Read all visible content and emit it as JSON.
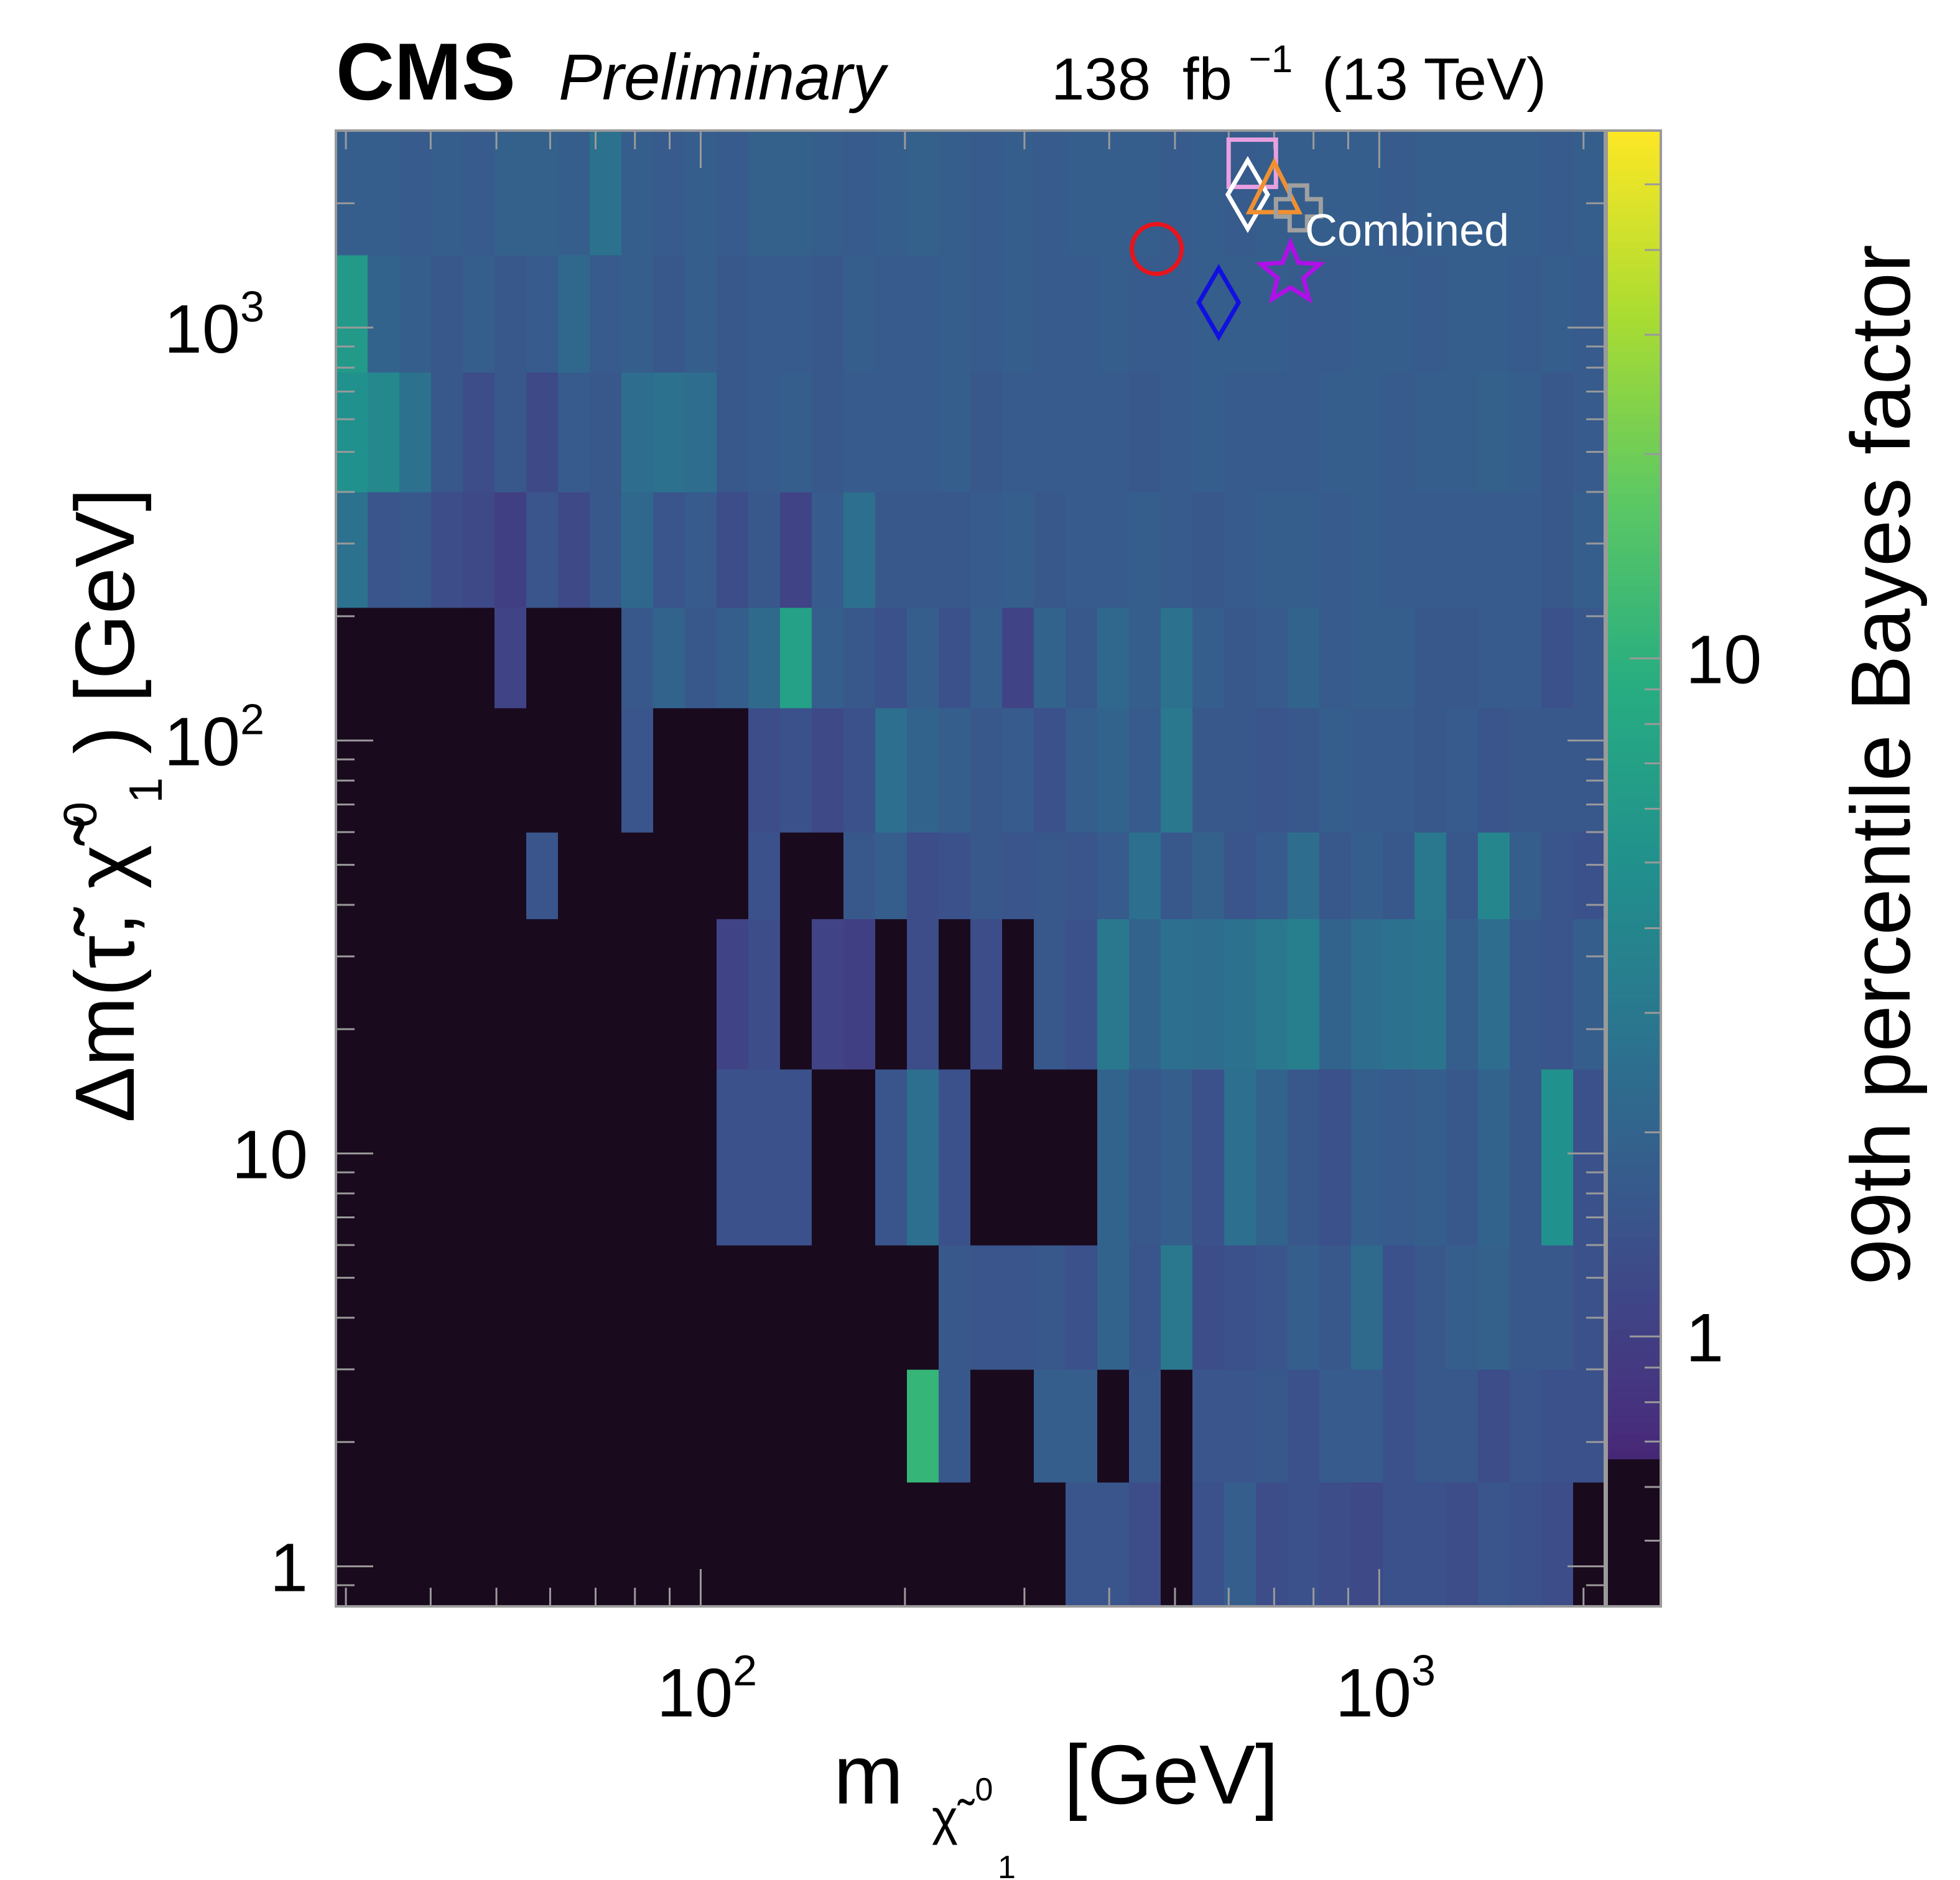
{
  "header": {
    "experiment": "CMS",
    "status": "Preliminary",
    "lumi_number": "138",
    "lumi_unit": "fb",
    "lumi_exponent": "−1",
    "energy": "(13 TeV)"
  },
  "chart_data": {
    "type": "heatmap",
    "title": "CMS Preliminary",
    "xlabel": "m_{χ̃1^0} [GeV]",
    "ylabel": "Δm(τ̃,χ̃1^0) [GeV]",
    "zlabel": "99th percentile Bayes factor",
    "xlabel_parts": {
      "main": "m",
      "sub": "χ̃",
      "sub_sup": "0",
      "sub_sub": "1",
      "unit": "[GeV]"
    },
    "ylabel_parts": {
      "prefix": "Δm(τ̃,",
      "chi": "χ̃",
      "sup": "0",
      "sub": "1",
      "suffix": ") [GeV]"
    },
    "x_scale": "log",
    "y_scale": "log",
    "z_scale": "log",
    "xlim": [
      29,
      2150
    ],
    "ylim": [
      0.8,
      3000
    ],
    "zlim": [
      0.4,
      60
    ],
    "x_ticks": [
      {
        "base": "10",
        "exp": "2",
        "value": 100
      },
      {
        "base": "10",
        "exp": "3",
        "value": 1000
      }
    ],
    "y_ticks": [
      {
        "label": "1",
        "value": 1
      },
      {
        "label": "10",
        "value": 10
      },
      {
        "base": "10",
        "exp": "2",
        "value": 100
      },
      {
        "base": "10",
        "exp": "3",
        "value": 1000
      }
    ],
    "z_ticks": [
      {
        "label": "1",
        "value": 1
      },
      {
        "label": "10",
        "value": 10
      }
    ],
    "colormap": [
      "#440154",
      "#472f7d",
      "#3b518b",
      "#2c718e",
      "#21908d",
      "#27ad81",
      "#5cc863",
      "#aadc32",
      "#fde725"
    ],
    "colormap_dark": "#1a0a1e",
    "y_bins": [
      0.8,
      1.6,
      3.0,
      6.0,
      16,
      37,
      60,
      120,
      210,
      400,
      780,
      1500,
      3000
    ],
    "x_bins_per_row": 40,
    "grid": false,
    "legend": {
      "label": "Combined",
      "placement": "top-right",
      "markers": [
        {
          "shape": "circle",
          "color": "#e8141c",
          "x": 470,
          "y": 1550
        },
        {
          "shape": "diamond",
          "color": "#1010e0",
          "x": 580,
          "y": 1150
        },
        {
          "shape": "star",
          "color": "#b010e8",
          "x": 740,
          "y": 1350
        },
        {
          "shape": "square",
          "color": "#e8a0e0",
          "x": 650,
          "y": 2500
        },
        {
          "shape": "diamond",
          "color": "#ffffff",
          "x": 640,
          "y": 2100
        },
        {
          "shape": "triangle",
          "color": "#f09030",
          "x": 700,
          "y": 2150
        },
        {
          "shape": "cross",
          "color": "#a0a0a0",
          "x": 760,
          "y": 1950
        }
      ]
    },
    "values": [
      [
        0.5,
        0.5,
        0.5,
        0.5,
        0.5,
        0.5,
        0.5,
        0.5,
        0.5,
        0.5,
        0.5,
        0.5,
        0.5,
        0.5,
        0.5,
        0.5,
        0.5,
        0.5,
        0.5,
        0.5,
        0.5,
        0.5,
        0.5,
        1.5,
        1.5,
        1.3,
        0.55,
        1.4,
        1.8,
        1.3,
        1.4,
        1.3,
        1.2,
        1.4,
        1.4,
        1.3,
        1.5,
        1.4,
        1.3,
        0.5
      ],
      [
        0.5,
        0.5,
        0.5,
        0.5,
        0.5,
        0.5,
        0.5,
        0.5,
        0.5,
        0.5,
        0.5,
        0.5,
        0.5,
        0.5,
        0.5,
        0.5,
        0.5,
        0.5,
        11,
        1.6,
        0.5,
        0.5,
        1.8,
        1.8,
        0.6,
        1.6,
        0.55,
        1.5,
        1.5,
        1.6,
        1.4,
        1.7,
        1.7,
        1.4,
        1.6,
        1.6,
        1.3,
        1.5,
        1.4,
        1.4
      ],
      [
        0.5,
        0.5,
        0.5,
        0.5,
        0.5,
        0.5,
        0.5,
        0.5,
        0.5,
        0.5,
        0.5,
        0.5,
        0.5,
        0.5,
        0.5,
        0.5,
        0.5,
        0.5,
        0.5,
        1.6,
        1.5,
        1.5,
        1.6,
        1.4,
        2.0,
        1.5,
        3.0,
        1.3,
        1.4,
        1.5,
        1.8,
        1.6,
        2.3,
        1.4,
        1.6,
        1.8,
        1.9,
        1.6,
        1.6,
        1.4
      ],
      [
        0.5,
        0.5,
        0.5,
        0.5,
        0.5,
        0.5,
        0.5,
        0.5,
        0.5,
        0.5,
        0.5,
        0.5,
        1.4,
        1.4,
        1.4,
        0.5,
        0.5,
        1.5,
        2.5,
        1.4,
        0.55,
        0.55,
        0.5,
        0.5,
        2.0,
        1.6,
        1.8,
        1.4,
        2.5,
        2.0,
        1.6,
        1.4,
        1.8,
        1.7,
        1.8,
        1.6,
        2.0,
        1.6,
        5.0,
        1.4
      ],
      [
        0.5,
        0.5,
        0.5,
        0.5,
        0.5,
        0.5,
        0.5,
        0.5,
        0.5,
        0.5,
        0.5,
        0.6,
        1.1,
        1.3,
        0.6,
        1.1,
        1.0,
        0.55,
        1.3,
        0.5,
        1.3,
        0.5,
        1.6,
        1.4,
        3.0,
        2.0,
        2.5,
        2.4,
        2.6,
        3.0,
        3.5,
        2.0,
        2.4,
        2.6,
        2.8,
        1.8,
        2.4,
        1.6,
        1.5,
        1.8
      ],
      [
        0.5,
        0.5,
        0.5,
        0.5,
        0.5,
        0.5,
        1.5,
        0.5,
        0.5,
        0.5,
        0.5,
        0.5,
        0.6,
        1.4,
        0.5,
        0.5,
        1.6,
        1.8,
        1.3,
        1.4,
        1.6,
        1.5,
        1.6,
        1.5,
        1.7,
        2.5,
        1.6,
        1.9,
        1.5,
        1.7,
        2.4,
        1.6,
        1.8,
        1.6,
        3.0,
        1.6,
        4.0,
        1.8,
        1.5,
        1.4
      ],
      [
        0.5,
        0.5,
        0.5,
        0.5,
        0.5,
        0.5,
        0.5,
        0.5,
        0.5,
        1.5,
        0.5,
        0.5,
        0.5,
        1.3,
        1.4,
        1.2,
        1.4,
        2.5,
        2.0,
        1.8,
        1.6,
        1.7,
        1.4,
        1.8,
        2.0,
        1.7,
        3.0,
        1.6,
        1.6,
        1.5,
        1.6,
        1.8,
        1.7,
        1.7,
        1.6,
        1.7,
        1.5,
        1.6,
        1.6,
        1.6
      ],
      [
        0.5,
        0.5,
        0.5,
        0.5,
        0.5,
        1.1,
        0.5,
        0.5,
        0.5,
        1.6,
        2.0,
        1.6,
        1.8,
        2.3,
        7.0,
        1.8,
        1.6,
        1.4,
        1.8,
        1.4,
        1.8,
        1.1,
        2.0,
        1.6,
        2.2,
        1.8,
        2.6,
        1.8,
        1.6,
        1.7,
        2.0,
        1.7,
        1.8,
        1.8,
        1.6,
        1.6,
        1.7,
        1.7,
        1.4,
        1.6
      ],
      [
        2.6,
        1.5,
        1.6,
        1.3,
        1.2,
        1.0,
        1.5,
        1.2,
        1.6,
        2.2,
        1.5,
        1.7,
        1.3,
        1.6,
        1.1,
        1.7,
        2.5,
        1.6,
        1.6,
        1.6,
        1.7,
        1.8,
        1.6,
        1.7,
        1.7,
        1.8,
        1.7,
        1.6,
        1.7,
        1.8,
        1.8,
        1.7,
        1.8,
        1.7,
        1.7,
        1.7,
        1.7,
        1.7,
        1.6,
        1.8
      ],
      [
        5.0,
        4.2,
        2.6,
        1.6,
        1.3,
        1.6,
        1.2,
        1.7,
        1.6,
        2.4,
        2.6,
        2.4,
        1.6,
        1.7,
        1.8,
        1.6,
        1.7,
        1.7,
        1.7,
        1.8,
        1.6,
        1.7,
        1.7,
        1.7,
        1.7,
        1.6,
        1.7,
        1.8,
        1.7,
        1.7,
        1.7,
        1.8,
        1.8,
        1.7,
        1.8,
        1.8,
        1.9,
        1.8,
        1.6,
        1.7
      ],
      [
        6.0,
        2.0,
        1.8,
        1.6,
        1.8,
        1.6,
        1.7,
        2.2,
        1.7,
        1.8,
        1.6,
        1.8,
        1.6,
        1.7,
        1.7,
        1.6,
        1.8,
        1.7,
        1.7,
        1.8,
        1.7,
        1.8,
        1.7,
        1.7,
        1.8,
        1.7,
        1.7,
        1.8,
        1.8,
        1.8,
        1.7,
        1.7,
        1.8,
        1.8,
        1.7,
        1.8,
        1.8,
        1.7,
        1.8,
        1.7
      ],
      [
        1.8,
        1.8,
        1.7,
        1.8,
        1.7,
        1.9,
        1.9,
        1.8,
        2.6,
        1.8,
        1.7,
        1.8,
        1.7,
        1.9,
        1.9,
        1.8,
        1.7,
        1.8,
        1.9,
        1.8,
        1.7,
        1.8,
        1.7,
        1.8,
        1.8,
        1.8,
        1.7,
        1.8,
        1.7,
        1.8,
        1.8,
        1.8,
        1.8,
        1.7,
        1.8,
        1.8,
        1.8,
        1.8,
        1.7,
        1.8
      ]
    ]
  }
}
